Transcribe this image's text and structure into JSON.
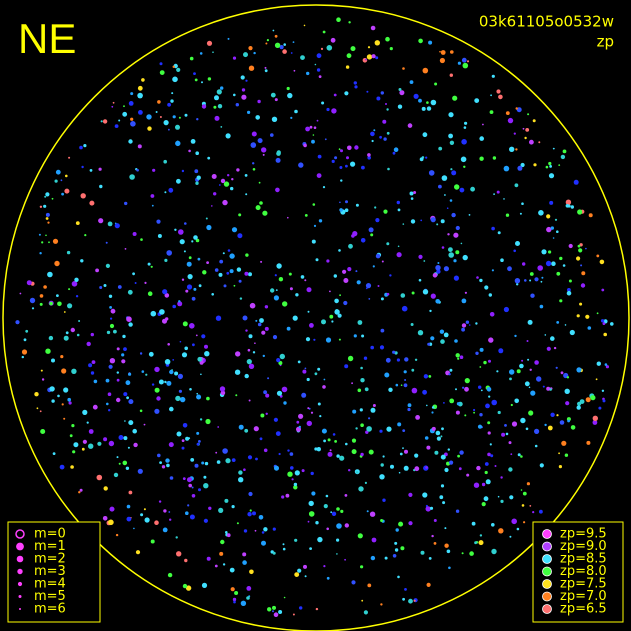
{
  "header": {
    "direction": "NE",
    "frame_id": "03k61105o0532w",
    "mode": "zp"
  },
  "magnitude_legend": {
    "items": [
      {
        "label": "m=0"
      },
      {
        "label": "m=1"
      },
      {
        "label": "m=2"
      },
      {
        "label": "m=3"
      },
      {
        "label": "m=4"
      },
      {
        "label": "m=5"
      },
      {
        "label": "m=6"
      }
    ]
  },
  "zp_legend": {
    "items": [
      {
        "label": "zp=9.5",
        "color": "#ff40ff"
      },
      {
        "label": "zp=9.0",
        "color": "#b040ff"
      },
      {
        "label": "zp=8.5",
        "color": "#40e0ff"
      },
      {
        "label": "zp=8.0",
        "color": "#40ff40"
      },
      {
        "label": "zp=7.5",
        "color": "#ffe020"
      },
      {
        "label": "zp=7.0",
        "color": "#ff8020"
      },
      {
        "label": "zp=6.5",
        "color": "#ff7070"
      }
    ]
  }
}
